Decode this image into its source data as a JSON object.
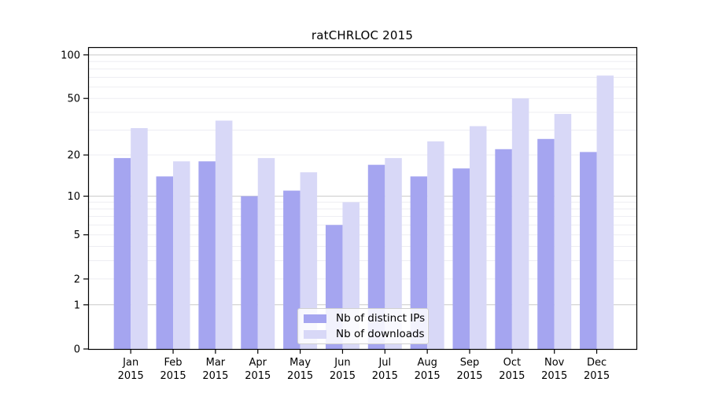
{
  "title": "ratCHRLOC 2015",
  "chart_data": {
    "type": "bar",
    "title": "ratCHRLOC 2015",
    "xlabel": "",
    "ylabel": "",
    "yscale": "log1p",
    "ylim": [
      0,
      113
    ],
    "ytick_values": [
      0,
      1,
      2,
      5,
      10,
      20,
      50,
      100
    ],
    "ytick_labels": [
      "0",
      "1",
      "2",
      "5",
      "10",
      "20",
      "50",
      "100"
    ],
    "major_gridlines": [
      1,
      10,
      100
    ],
    "minor_gridlines": [
      2,
      3,
      4,
      5,
      6,
      7,
      8,
      9,
      20,
      30,
      40,
      50,
      60,
      70,
      80,
      90
    ],
    "grid": "on",
    "legend_position": "lower center",
    "categories": [
      "Jan 2015",
      "Feb 2015",
      "Mar 2015",
      "Apr 2015",
      "May 2015",
      "Jun 2015",
      "Jul 2015",
      "Aug 2015",
      "Sep 2015",
      "Oct 2015",
      "Nov 2015",
      "Dec 2015"
    ],
    "series": [
      {
        "name": "Nb of distinct IPs",
        "color": "#a5a5f0",
        "values": [
          19,
          14,
          18,
          10,
          11,
          6,
          17,
          14,
          16,
          22,
          26,
          21
        ]
      },
      {
        "name": "Nb of downloads",
        "color": "#d8d8f7",
        "values": [
          31,
          18,
          35,
          19,
          15,
          9,
          19,
          25,
          32,
          50,
          39,
          72
        ]
      }
    ],
    "colors": {
      "background": "#ffffff",
      "spine": "#000000",
      "major_grid": "#c9c9c9",
      "minor_grid": "#ededf2",
      "tick_text": "#000000",
      "legend_border": "#d0d0d0"
    }
  }
}
